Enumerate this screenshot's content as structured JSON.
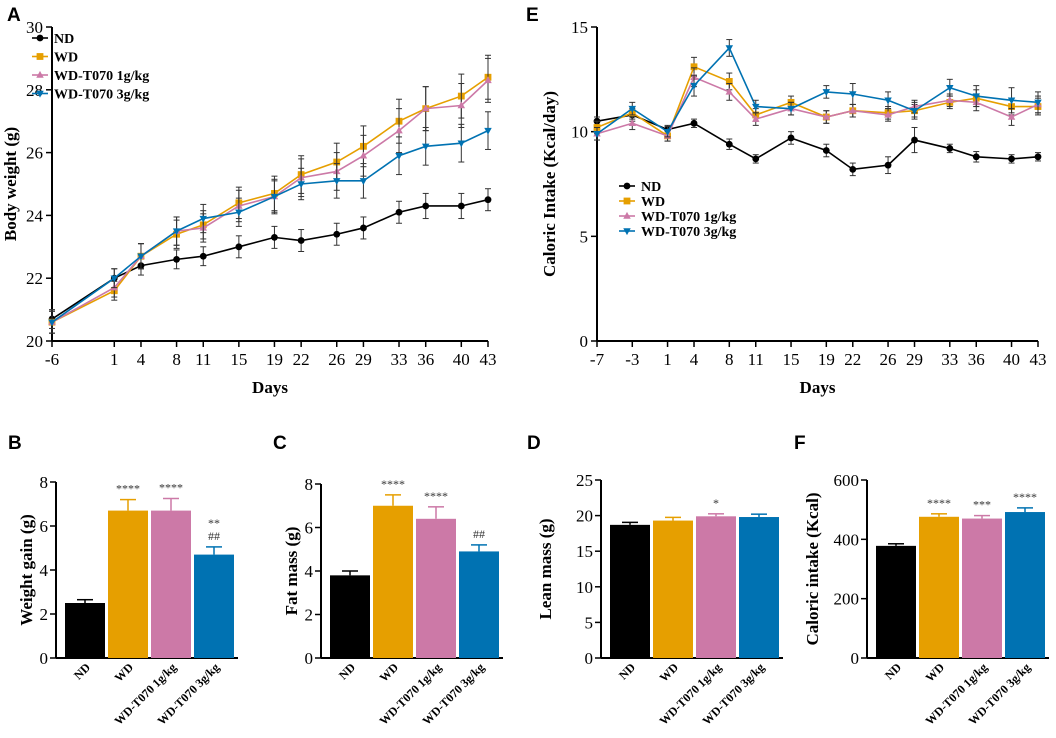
{
  "chart_data": [
    {
      "id": "A",
      "type": "line",
      "xlabel": "Days",
      "ylabel": "Body weight (g)",
      "ylim": [
        20,
        30
      ],
      "yticks": [
        20,
        22,
        24,
        26,
        28,
        30
      ],
      "xlim": [
        -6,
        43
      ],
      "xticks": [
        -6,
        1,
        4,
        8,
        11,
        15,
        19,
        22,
        26,
        29,
        33,
        36,
        40,
        43
      ],
      "x": [
        -6,
        1,
        4,
        8,
        11,
        15,
        19,
        22,
        26,
        29,
        33,
        36,
        40,
        43
      ],
      "series": [
        {
          "name": "ND",
          "color": "#000000",
          "marker": "circle",
          "values": [
            20.7,
            22.0,
            22.4,
            22.6,
            22.7,
            23.0,
            23.3,
            23.2,
            23.4,
            23.6,
            24.1,
            24.3,
            24.3,
            24.5
          ],
          "errors": [
            0.3,
            0.3,
            0.3,
            0.3,
            0.3,
            0.35,
            0.35,
            0.35,
            0.35,
            0.35,
            0.35,
            0.4,
            0.4,
            0.35
          ]
        },
        {
          "name": "WD",
          "color": "#E69F00",
          "marker": "square",
          "values": [
            20.6,
            21.6,
            22.7,
            23.4,
            23.7,
            24.4,
            24.7,
            25.3,
            25.7,
            26.2,
            27.0,
            27.4,
            27.8,
            28.4
          ],
          "errors": [
            0.35,
            0.3,
            0.4,
            0.45,
            0.45,
            0.5,
            0.55,
            0.6,
            0.6,
            0.65,
            0.7,
            0.7,
            0.7,
            0.7
          ]
        },
        {
          "name": "WD-T070 1g/kg",
          "color": "#CC79A7",
          "marker": "triangle-up",
          "values": [
            20.6,
            21.7,
            22.7,
            23.5,
            23.6,
            24.3,
            24.6,
            25.2,
            25.4,
            25.9,
            26.7,
            27.4,
            27.5,
            28.3
          ],
          "errors": [
            0.35,
            0.3,
            0.4,
            0.45,
            0.45,
            0.5,
            0.55,
            0.6,
            0.6,
            0.65,
            0.7,
            0.7,
            0.7,
            0.7
          ]
        },
        {
          "name": "WD-T070 3g/kg",
          "color": "#0072B2",
          "marker": "triangle-down",
          "values": [
            20.6,
            22.0,
            22.7,
            23.5,
            23.9,
            24.1,
            24.6,
            25.0,
            25.1,
            25.1,
            25.9,
            26.2,
            26.3,
            26.7
          ],
          "errors": [
            0.35,
            0.3,
            0.4,
            0.45,
            0.45,
            0.45,
            0.5,
            0.5,
            0.55,
            0.55,
            0.6,
            0.6,
            0.6,
            0.6
          ]
        }
      ]
    },
    {
      "id": "E",
      "type": "line",
      "xlabel": "Days",
      "ylabel": "Caloric Intake (Kcal/day)",
      "ylim": [
        0,
        15
      ],
      "yticks": [
        0,
        5,
        10,
        15
      ],
      "xlim": [
        -7,
        43
      ],
      "xticks": [
        -7,
        -3,
        1,
        4,
        8,
        11,
        15,
        19,
        22,
        26,
        29,
        33,
        36,
        40,
        43
      ],
      "x": [
        -7,
        -3,
        1,
        4,
        8,
        11,
        15,
        19,
        22,
        26,
        29,
        33,
        36,
        40,
        43
      ],
      "series": [
        {
          "name": "ND",
          "color": "#000000",
          "marker": "circle",
          "values": [
            10.5,
            10.8,
            10.1,
            10.4,
            9.4,
            8.7,
            9.7,
            9.1,
            8.2,
            8.4,
            9.6,
            9.2,
            8.8,
            8.7,
            8.8
          ],
          "errors": [
            0.2,
            0.3,
            0.2,
            0.2,
            0.25,
            0.2,
            0.3,
            0.3,
            0.3,
            0.4,
            0.6,
            0.2,
            0.25,
            0.2,
            0.2
          ]
        },
        {
          "name": "WD",
          "color": "#E69F00",
          "marker": "square",
          "values": [
            10.2,
            10.9,
            9.8,
            13.1,
            12.4,
            10.8,
            11.4,
            10.7,
            11.0,
            10.9,
            11.0,
            11.4,
            11.6,
            11.2,
            11.2
          ],
          "errors": [
            0.3,
            0.3,
            0.25,
            0.45,
            0.4,
            0.3,
            0.3,
            0.3,
            0.3,
            0.3,
            0.3,
            0.3,
            0.4,
            0.4,
            0.4
          ]
        },
        {
          "name": "WD-T070 1g/kg",
          "color": "#CC79A7",
          "marker": "triangle-up",
          "values": [
            9.9,
            10.4,
            9.8,
            12.6,
            11.9,
            10.6,
            11.1,
            10.7,
            11.0,
            10.8,
            11.2,
            11.5,
            11.4,
            10.7,
            11.3
          ],
          "errors": [
            0.3,
            0.3,
            0.25,
            0.45,
            0.4,
            0.3,
            0.3,
            0.3,
            0.3,
            0.3,
            0.3,
            0.3,
            0.4,
            0.4,
            0.4
          ]
        },
        {
          "name": "WD-T070 3g/kg",
          "color": "#0072B2",
          "marker": "triangle-down",
          "values": [
            9.9,
            11.1,
            10.0,
            12.2,
            14.0,
            11.2,
            11.1,
            11.9,
            11.8,
            11.5,
            11.0,
            12.1,
            11.7,
            11.5,
            11.4
          ],
          "errors": [
            0.3,
            0.3,
            0.25,
            0.5,
            0.4,
            0.3,
            0.3,
            0.3,
            0.5,
            0.4,
            0.4,
            0.4,
            0.5,
            0.6,
            0.5
          ]
        }
      ]
    },
    {
      "id": "B",
      "type": "bar",
      "xlabel": "",
      "ylabel": "Weight gain (g)",
      "ylim": [
        0,
        8
      ],
      "yticks": [
        0,
        2,
        4,
        6,
        8
      ],
      "categories": [
        "ND",
        "WD",
        "WD-T070 1g/kg",
        "WD-T070 3g/kg"
      ],
      "values": [
        2.5,
        6.7,
        6.7,
        4.7
      ],
      "errors": [
        0.15,
        0.5,
        0.55,
        0.35
      ],
      "annotations": [
        "",
        "****",
        "****",
        "**\n##"
      ]
    },
    {
      "id": "C",
      "type": "bar",
      "xlabel": "",
      "ylabel": "Fat mass (g)",
      "ylim": [
        0,
        8
      ],
      "yticks": [
        0,
        2,
        4,
        6,
        8
      ],
      "categories": [
        "ND",
        "WD",
        "WD-T070 1g/kg",
        "WD-T070 3g/kg"
      ],
      "values": [
        3.8,
        7.0,
        6.4,
        4.9
      ],
      "errors": [
        0.2,
        0.5,
        0.55,
        0.3
      ],
      "annotations": [
        "",
        "****",
        "****",
        "##"
      ]
    },
    {
      "id": "D",
      "type": "bar",
      "xlabel": "",
      "ylabel": "Lean mass (g)",
      "ylim": [
        0,
        25
      ],
      "yticks": [
        0,
        5,
        10,
        15,
        20,
        25
      ],
      "categories": [
        "ND",
        "WD",
        "WD-T070 1g/kg",
        "WD-T070 3g/kg"
      ],
      "values": [
        18.7,
        19.3,
        19.9,
        19.8
      ],
      "errors": [
        0.35,
        0.45,
        0.35,
        0.4
      ],
      "annotations": [
        "",
        "",
        "*",
        ""
      ]
    },
    {
      "id": "F",
      "type": "bar",
      "xlabel": "",
      "ylabel": "Caloric intake (Kcal)",
      "ylim": [
        0,
        600
      ],
      "yticks": [
        0,
        200,
        400,
        600
      ],
      "categories": [
        "ND",
        "WD",
        "WD-T070 1g/kg",
        "WD-T070 3g/kg"
      ],
      "values": [
        378,
        476,
        470,
        492
      ],
      "errors": [
        7,
        10,
        10,
        14
      ],
      "annotations": [
        "",
        "****",
        "***",
        "****"
      ]
    }
  ],
  "bar_colors": [
    "#000000",
    "#E69F00",
    "#CC79A7",
    "#0072B2"
  ]
}
